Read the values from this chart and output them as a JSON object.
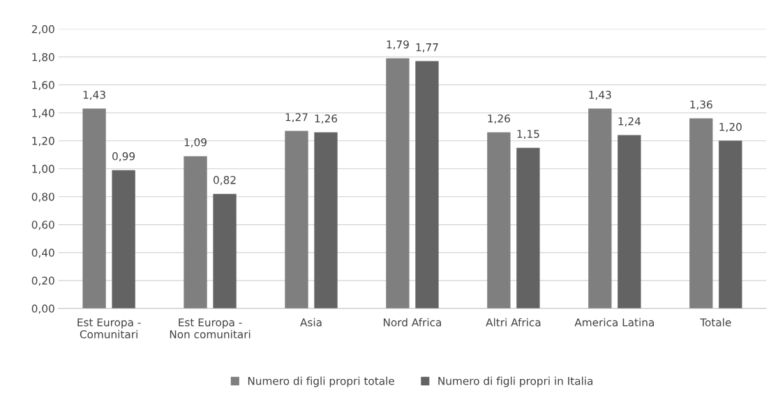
{
  "chart_data": {
    "type": "bar",
    "categories": [
      "Est Europa -\nComunitari",
      "Est Europa -\nNon comunitari",
      "Asia",
      "Nord Africa",
      "Altri Africa",
      "America Latina",
      "Totale"
    ],
    "series": [
      {
        "name": "Numero di figli propri totale",
        "color": "#7f7f7f",
        "values": [
          1.43,
          1.09,
          1.27,
          1.79,
          1.26,
          1.43,
          1.36
        ],
        "value_labels": [
          "1,43",
          "1,09",
          "1,27",
          "1,79",
          "1,26",
          "1,43",
          "1,36"
        ]
      },
      {
        "name": "Numero di figli propri in Italia",
        "color": "#636363",
        "values": [
          0.99,
          0.82,
          1.26,
          1.77,
          1.15,
          1.24,
          1.2
        ],
        "value_labels": [
          "0,99",
          "0,82",
          "1,26",
          "1,77",
          "1,15",
          "1,24",
          "1,20"
        ]
      }
    ],
    "ylim": [
      0,
      2
    ],
    "yticks": [
      {
        "value": 0,
        "label": "0,00"
      },
      {
        "value": 0.2,
        "label": "0,20"
      },
      {
        "value": 0.4,
        "label": "0,40"
      },
      {
        "value": 0.6,
        "label": "0,60"
      },
      {
        "value": 0.8,
        "label": "0,80"
      },
      {
        "value": 1.0,
        "label": "1,00"
      },
      {
        "value": 1.2,
        "label": "1,20"
      },
      {
        "value": 1.4,
        "label": "1,40"
      },
      {
        "value": 1.6,
        "label": "1,60"
      },
      {
        "value": 1.8,
        "label": "1,80"
      },
      {
        "value": 2.0,
        "label": "2,00"
      }
    ],
    "grid": "y",
    "legend": "bottom"
  }
}
